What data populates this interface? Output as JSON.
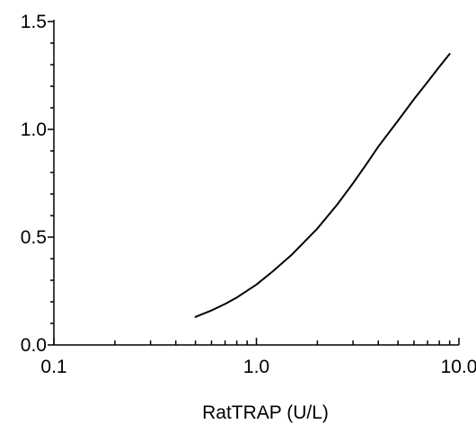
{
  "chart_data": {
    "type": "line",
    "title": "",
    "xlabel": "RatTRAP (U/L)",
    "ylabel": "",
    "x_scale": "log",
    "xlim": [
      0.1,
      10.0
    ],
    "ylim": [
      0.0,
      1.5
    ],
    "x_major_ticks": [
      0.1,
      1.0,
      10.0
    ],
    "x_tick_labels": [
      "0.1",
      "1.0",
      "10.0"
    ],
    "y_major_ticks": [
      0.0,
      0.5,
      1.0,
      1.5
    ],
    "y_tick_labels": [
      "0.0",
      "0.5",
      "1.0",
      "1.5"
    ],
    "grid": false,
    "legend": "none",
    "line_color": "#000000",
    "series": [
      {
        "x": [
          0.5,
          0.6,
          0.7,
          0.8,
          1.0,
          1.2,
          1.5,
          2.0,
          2.5,
          3.0,
          3.5,
          4.0,
          5.0,
          6.0,
          7.0,
          8.0,
          9.0
        ],
        "values": [
          0.13,
          0.16,
          0.19,
          0.22,
          0.28,
          0.34,
          0.42,
          0.54,
          0.65,
          0.75,
          0.84,
          0.92,
          1.04,
          1.14,
          1.22,
          1.29,
          1.35
        ]
      }
    ]
  }
}
